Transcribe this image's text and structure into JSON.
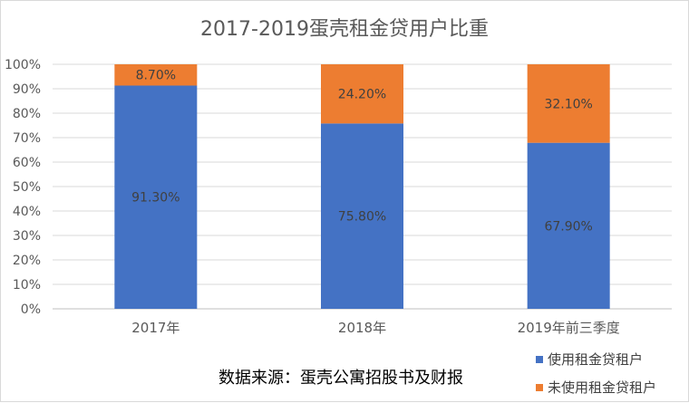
{
  "chart_data": {
    "type": "bar",
    "stacked": true,
    "title": "2017-2019蛋壳租金贷用户比重",
    "categories": [
      "2017年",
      "2018年",
      "2019年前三季度"
    ],
    "series": [
      {
        "name": "使用租金贷租户",
        "values": [
          91.3,
          75.8,
          67.9
        ],
        "labels": [
          "91.30%",
          "75.80%",
          "67.90%"
        ],
        "color": "#4472c4"
      },
      {
        "name": "未使用租金贷租户",
        "values": [
          8.7,
          24.2,
          32.1
        ],
        "labels": [
          "8.70%",
          "24.20%",
          "32.10%"
        ],
        "color": "#ed7d31"
      }
    ],
    "ylim": [
      0,
      100
    ],
    "yticks": [
      "0%",
      "10%",
      "20%",
      "30%",
      "40%",
      "50%",
      "60%",
      "70%",
      "80%",
      "90%",
      "100%"
    ],
    "grid": true,
    "legend_position": "bottom-right",
    "annotation": "数据来源：蛋壳公寓招股书及财报"
  }
}
